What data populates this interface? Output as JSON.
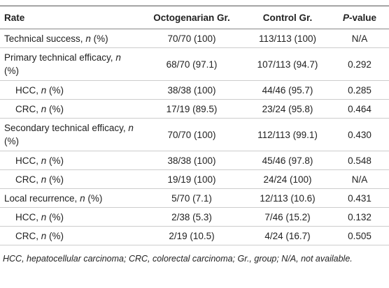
{
  "table": {
    "header": [
      "Rate",
      "Octogenarian Gr.",
      "Control Gr.",
      "P-value"
    ],
    "rows": [
      [
        "Technical success, n (%)",
        "70/70 (100)",
        "113/113 (100)",
        "N/A"
      ],
      [
        "Primary technical efficacy, n (%)",
        "68/70 (97.1)",
        "107/113 (94.7)",
        "0.292"
      ],
      [
        "HCC, n (%)",
        "38/38 (100)",
        "44/46 (95.7)",
        "0.285"
      ],
      [
        "CRC, n (%)",
        "17/19 (89.5)",
        "23/24 (95.8)",
        "0.464"
      ],
      [
        "Secondary technical efficacy, n (%)",
        "70/70 (100)",
        "112/113 (99.1)",
        "0.430"
      ],
      [
        "HCC, n (%)",
        "38/38 (100)",
        "45/46 (97.8)",
        "0.548"
      ],
      [
        "CRC, n (%)",
        "19/19 (100)",
        "24/24 (100)",
        "N/A"
      ],
      [
        "Local recurrence, n (%)",
        "5/70 (7.1)",
        "12/113 (10.6)",
        "0.431"
      ],
      [
        "HCC, n (%)",
        "2/38 (5.3)",
        "7/46 (15.2)",
        "0.132"
      ],
      [
        "CRC, n (%)",
        "2/19 (10.5)",
        "4/24 (16.7)",
        "0.505"
      ]
    ]
  },
  "footnote": "HCC, hepatocellular carcinoma; CRC, colorectal carcinoma; Gr., group; N/A, not available."
}
